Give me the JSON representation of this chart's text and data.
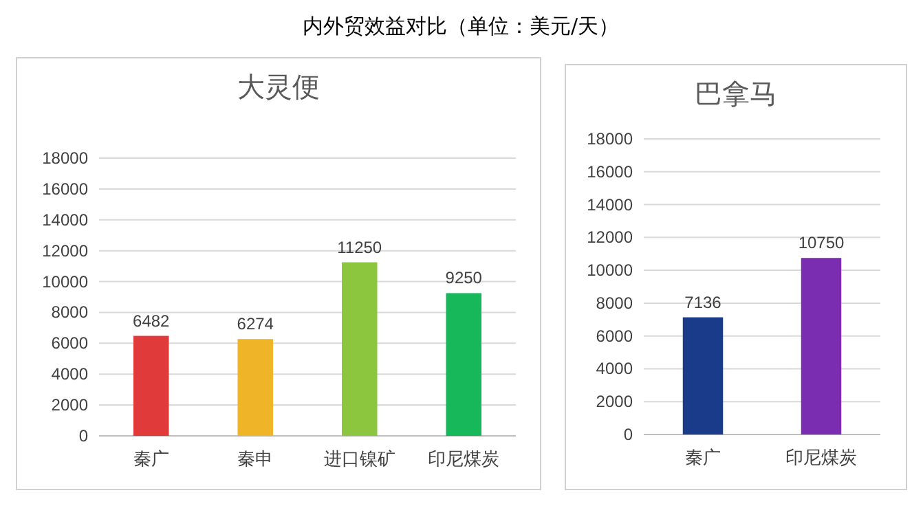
{
  "chart_data": [
    {
      "type": "bar",
      "title": "大灵便",
      "annotations": [
        "内外贸效益对比（单位：美元/天）"
      ],
      "categories": [
        "秦广",
        "秦申",
        "进口镍矿",
        "印尼煤炭"
      ],
      "values": [
        6482,
        6274,
        11250,
        9250
      ],
      "colors": [
        "#e03a3a",
        "#f0b429",
        "#8cc63f",
        "#16b85a"
      ],
      "ylim": [
        0,
        18000
      ],
      "yticks": [
        0,
        2000,
        4000,
        6000,
        8000,
        10000,
        12000,
        14000,
        16000,
        18000
      ],
      "grid": "y",
      "data_labels": true
    },
    {
      "type": "bar",
      "title": "巴拿马",
      "categories": [
        "秦广",
        "印尼煤炭"
      ],
      "values": [
        7136,
        10750
      ],
      "colors": [
        "#1a3a8a",
        "#7a2db0"
      ],
      "ylim": [
        0,
        18000
      ],
      "yticks": [
        0,
        2000,
        4000,
        6000,
        8000,
        10000,
        12000,
        14000,
        16000,
        18000
      ],
      "grid": "y",
      "data_labels": true
    }
  ]
}
